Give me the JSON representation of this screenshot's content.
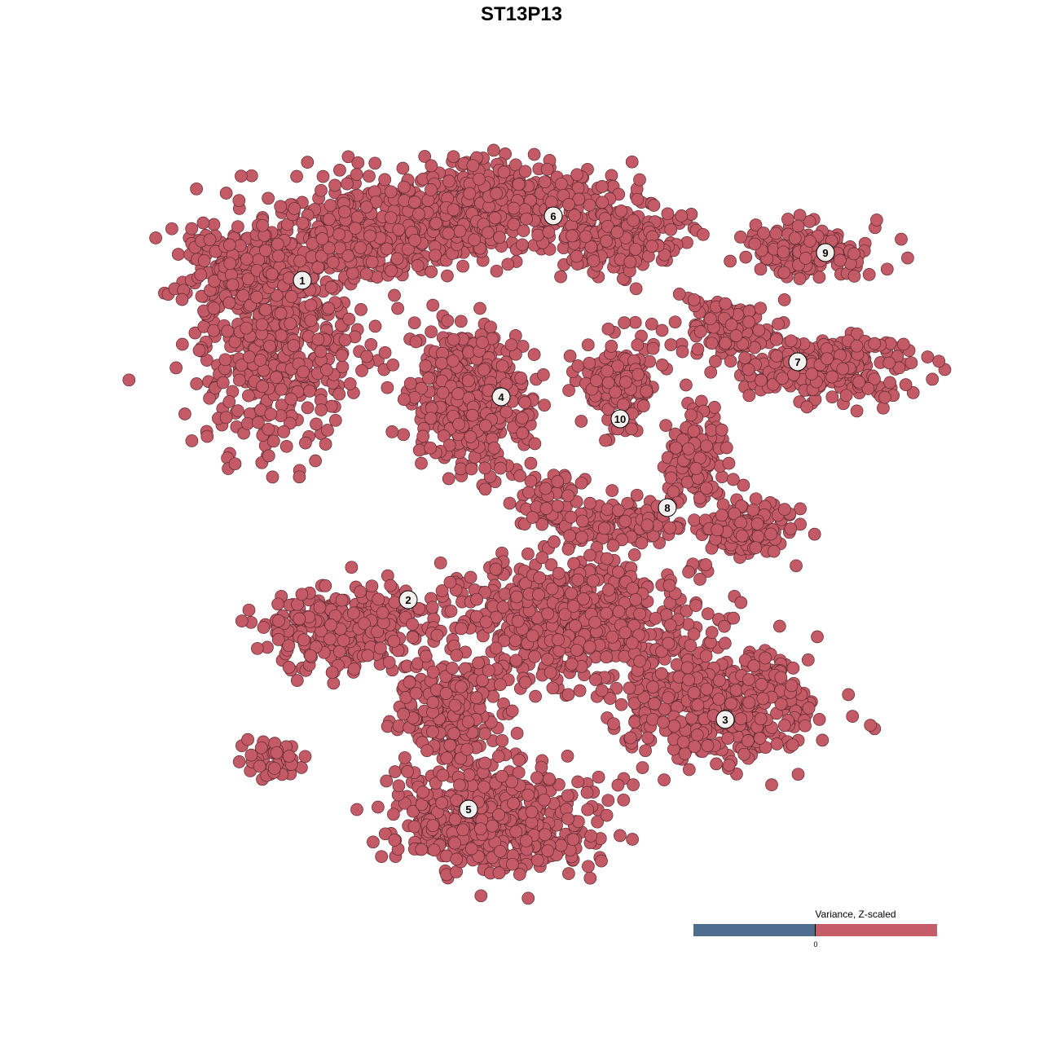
{
  "chart_data": {
    "type": "scatter",
    "title": "ST13P13",
    "xlabel": "",
    "ylabel": "",
    "point_color": "#c45a66",
    "point_stroke": "#5a2a30",
    "clusters": [
      {
        "id": "1",
        "label_x": -26.9,
        "label_y": 29.6
      },
      {
        "id": "2",
        "label_x": -13.9,
        "label_y": -9.6
      },
      {
        "id": "3",
        "label_x": 25.0,
        "label_y": -24.3
      },
      {
        "id": "4",
        "label_x": -2.5,
        "label_y": 15.3
      },
      {
        "id": "5",
        "label_x": -6.5,
        "label_y": -35.3
      },
      {
        "id": "6",
        "label_x": 3.9,
        "label_y": 37.5
      },
      {
        "id": "7",
        "label_x": 33.9,
        "label_y": 19.6
      },
      {
        "id": "8",
        "label_x": 17.9,
        "label_y": 1.7
      },
      {
        "id": "9",
        "label_x": 37.3,
        "label_y": 33.0
      },
      {
        "id": "10",
        "label_x": 12.1,
        "label_y": 12.6
      }
    ],
    "legend": {
      "title": "Variance, Z-scaled",
      "tick": "0",
      "low_color": "#4f6d8f",
      "high_color": "#c65c67",
      "placement": "bottom-right"
    },
    "grid": false
  }
}
